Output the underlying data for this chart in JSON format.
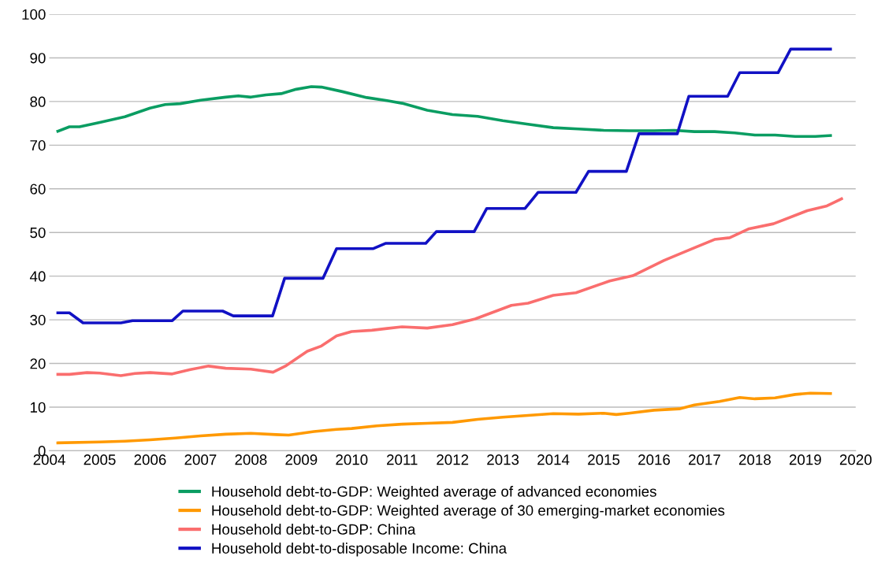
{
  "chart_data": {
    "type": "line",
    "xlim": [
      2004,
      2020
    ],
    "xticks": [
      2004,
      2005,
      2006,
      2007,
      2008,
      2009,
      2010,
      2011,
      2012,
      2013,
      2014,
      2015,
      2016,
      2017,
      2018,
      2019,
      2020
    ],
    "ylim": [
      0,
      100
    ],
    "yticks": [
      0,
      10,
      20,
      30,
      40,
      50,
      60,
      70,
      80,
      90,
      100
    ],
    "grid": "y",
    "legend": "bottom",
    "marker": "none",
    "line_style": "solid",
    "series": [
      {
        "name": "Household debt-to-GDP: Weighted average of advanced economies",
        "color": "#0a9d62",
        "x": [
          2004.17,
          2004.4,
          2004.6,
          2005,
          2005.5,
          2006,
          2006.3,
          2006.6,
          2007,
          2007.5,
          2007.75,
          2008,
          2008.3,
          2008.6,
          2008.9,
          2009.2,
          2009.4,
          2009.8,
          2010.3,
          2010.7,
          2011,
          2011.5,
          2012,
          2012.5,
          2013,
          2013.5,
          2014,
          2014.5,
          2015,
          2015.5,
          2016,
          2016.4,
          2016.8,
          2017.2,
          2017.6,
          2018,
          2018.4,
          2018.8,
          2019.2,
          2019.5
        ],
        "values": [
          73.2,
          74.2,
          74.2,
          75.2,
          76.5,
          78.5,
          79.3,
          79.5,
          80.3,
          81,
          81.3,
          81,
          81.5,
          81.8,
          82.8,
          83.4,
          83.3,
          82.3,
          80.9,
          80.2,
          79.6,
          78,
          77,
          76.6,
          75.6,
          74.8,
          74,
          73.7,
          73.4,
          73.3,
          73.3,
          73.4,
          73.1,
          73.1,
          72.8,
          72.3,
          72.3,
          72,
          72,
          72.2
        ]
      },
      {
        "name": "Household debt-to-GDP: Weighted average of 30 emerging-market economies",
        "color": "#ff9900",
        "x": [
          2004.17,
          2005,
          2005.5,
          2006,
          2006.5,
          2007,
          2007.5,
          2008,
          2008.5,
          2008.75,
          2009.25,
          2009.7,
          2010,
          2010.5,
          2011,
          2011.5,
          2012,
          2012.5,
          2013,
          2013.5,
          2014,
          2014.5,
          2015,
          2015.25,
          2015.5,
          2016,
          2016.5,
          2016.8,
          2017.3,
          2017.7,
          2018,
          2018.4,
          2018.8,
          2019.1,
          2019.5
        ],
        "values": [
          1.8,
          2.0,
          2.2,
          2.5,
          2.9,
          3.4,
          3.8,
          4.0,
          3.7,
          3.6,
          4.4,
          4.9,
          5.1,
          5.7,
          6.1,
          6.3,
          6.5,
          7.2,
          7.7,
          8.1,
          8.5,
          8.4,
          8.6,
          8.3,
          8.6,
          9.3,
          9.6,
          10.5,
          11.3,
          12.2,
          11.9,
          12.1,
          12.9,
          13.2,
          13.1
        ]
      },
      {
        "name": "Household debt-to-GDP: China",
        "color": "#fa6e6e",
        "x": [
          2004.17,
          2004.4,
          2004.75,
          2005,
          2005.42,
          2005.7,
          2006,
          2006.44,
          2006.8,
          2007.16,
          2007.5,
          2008,
          2008.44,
          2008.7,
          2009.12,
          2009.4,
          2009.7,
          2010,
          2010.4,
          2010.7,
          2011,
          2011.5,
          2012,
          2012.45,
          2013.17,
          2013.5,
          2014,
          2014.45,
          2015.12,
          2015.58,
          2016.2,
          2016.8,
          2017.2,
          2017.5,
          2017.87,
          2018.37,
          2019.04,
          2019.43,
          2019.72
        ],
        "values": [
          17.5,
          17.5,
          17.9,
          17.8,
          17.2,
          17.7,
          17.9,
          17.6,
          18.6,
          19.4,
          18.9,
          18.7,
          18.0,
          19.5,
          22.8,
          24,
          26.3,
          27.3,
          27.6,
          28,
          28.4,
          28.1,
          28.9,
          30.2,
          33.3,
          33.8,
          35.6,
          36.2,
          38.9,
          40.1,
          43.6,
          46.5,
          48.4,
          48.8,
          50.8,
          52,
          55,
          56.1,
          57.7
        ]
      },
      {
        "name": "Household debt-to-disposable Income: China",
        "color": "#1111c4",
        "x": [
          2004.17,
          2004.4,
          2004.67,
          2005.42,
          2005.65,
          2006.44,
          2006.65,
          2007.44,
          2007.65,
          2008.43,
          2008.67,
          2009.43,
          2009.7,
          2010.43,
          2010.67,
          2011.47,
          2011.68,
          2012.43,
          2012.68,
          2013.44,
          2013.7,
          2014.45,
          2014.7,
          2015.45,
          2015.7,
          2016.46,
          2016.69,
          2017.46,
          2017.7,
          2018.46,
          2018.71,
          2019.5
        ],
        "values": [
          31.6,
          31.6,
          29.3,
          29.3,
          29.8,
          29.8,
          32,
          32,
          30.9,
          30.9,
          39.5,
          39.5,
          46.3,
          46.3,
          47.5,
          47.5,
          50.2,
          50.2,
          55.5,
          55.5,
          59.2,
          59.2,
          64,
          64,
          72.6,
          72.6,
          81.2,
          81.2,
          86.6,
          86.6,
          92,
          92
        ]
      }
    ]
  }
}
